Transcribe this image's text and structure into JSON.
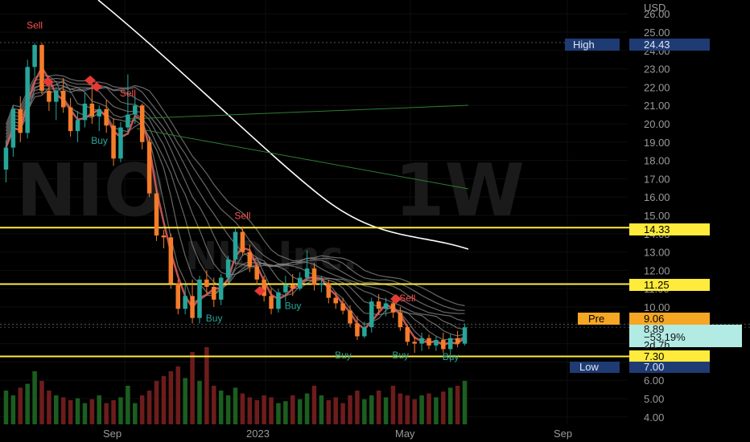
{
  "currency": "USD",
  "watermark": {
    "symbol": "NIO",
    "interval": "1W",
    "company": "NIO Inc."
  },
  "y_ticks": [
    "26.00",
    "25.00",
    "24.00",
    "23.00",
    "22.00",
    "21.00",
    "20.00",
    "19.00",
    "18.00",
    "17.00",
    "16.00",
    "15.00",
    "14.00",
    "13.00",
    "12.00",
    "11.00",
    "10.00",
    "9.00",
    "8.00",
    "7.00",
    "6.00",
    "5.00",
    "4.00"
  ],
  "x_ticks": [
    "Sep",
    "2023",
    "May",
    "Sep"
  ],
  "labels": {
    "high_name": "High",
    "high_value": "24.43",
    "level_1": "14.33",
    "level_2": "11.25",
    "pre_name": "Pre",
    "pre_value": "9.06",
    "last_price": "8.89",
    "change_pct": "−53.19%",
    "countdown": "2d 7h",
    "level_3": "7.30",
    "low_name": "Low",
    "low_value": "7.00"
  },
  "colors": {
    "up": "#26a69a",
    "down": "#f57c2a",
    "volume_up": "#1b5e20",
    "volume_down": "#6d1c1c",
    "level": "#ffeb3b",
    "axis_label_bg": "#1f3b73",
    "pre_bg": "#f5a623",
    "last_bg": "#b2ebe4",
    "sell_signal": "#ff5252",
    "buy_signal": "#26a69a"
  },
  "chart_data": {
    "type": "candlestick",
    "interval": "1W",
    "ylim": [
      3.5,
      26.4
    ],
    "levels": [
      14.33,
      11.25,
      7.3
    ],
    "candles": [
      {
        "o": 17.5,
        "h": 19.1,
        "l": 16.8,
        "c": 18.7
      },
      {
        "o": 18.7,
        "h": 21.0,
        "l": 18.2,
        "c": 20.8
      },
      {
        "o": 20.8,
        "h": 21.5,
        "l": 19.0,
        "c": 19.5
      },
      {
        "o": 19.5,
        "h": 23.5,
        "l": 19.2,
        "c": 23.1
      },
      {
        "o": 23.1,
        "h": 24.4,
        "l": 22.6,
        "c": 24.3
      },
      {
        "o": 24.3,
        "h": 24.4,
        "l": 21.6,
        "c": 21.8
      },
      {
        "o": 21.8,
        "h": 22.4,
        "l": 20.7,
        "c": 21.2
      },
      {
        "o": 21.2,
        "h": 22.0,
        "l": 20.2,
        "c": 21.8
      },
      {
        "o": 21.8,
        "h": 22.5,
        "l": 20.6,
        "c": 20.9
      },
      {
        "o": 20.9,
        "h": 21.4,
        "l": 19.3,
        "c": 19.6
      },
      {
        "o": 19.6,
        "h": 20.7,
        "l": 19.0,
        "c": 20.2
      },
      {
        "o": 20.2,
        "h": 21.7,
        "l": 19.8,
        "c": 21.1
      },
      {
        "o": 21.1,
        "h": 22.4,
        "l": 20.0,
        "c": 20.4
      },
      {
        "o": 20.4,
        "h": 21.0,
        "l": 19.6,
        "c": 20.8
      },
      {
        "o": 20.8,
        "h": 21.3,
        "l": 19.5,
        "c": 19.9
      },
      {
        "o": 19.9,
        "h": 20.3,
        "l": 17.7,
        "c": 18.1
      },
      {
        "o": 18.1,
        "h": 20.1,
        "l": 17.9,
        "c": 19.8
      },
      {
        "o": 19.8,
        "h": 22.7,
        "l": 19.5,
        "c": 20.5
      },
      {
        "o": 20.5,
        "h": 21.5,
        "l": 20.0,
        "c": 21.0
      },
      {
        "o": 21.0,
        "h": 21.1,
        "l": 18.6,
        "c": 19.0
      },
      {
        "o": 19.0,
        "h": 19.3,
        "l": 16.0,
        "c": 16.2
      },
      {
        "o": 16.2,
        "h": 16.4,
        "l": 13.6,
        "c": 13.9
      },
      {
        "o": 13.9,
        "h": 14.2,
        "l": 13.2,
        "c": 13.8
      },
      {
        "o": 13.8,
        "h": 14.0,
        "l": 11.0,
        "c": 11.3
      },
      {
        "o": 11.3,
        "h": 11.5,
        "l": 9.6,
        "c": 9.9
      },
      {
        "o": 9.9,
        "h": 11.2,
        "l": 9.6,
        "c": 10.6
      },
      {
        "o": 10.6,
        "h": 11.5,
        "l": 9.1,
        "c": 9.4
      },
      {
        "o": 9.4,
        "h": 11.7,
        "l": 9.1,
        "c": 11.5
      },
      {
        "o": 11.5,
        "h": 12.0,
        "l": 10.7,
        "c": 11.1
      },
      {
        "o": 11.1,
        "h": 11.6,
        "l": 10.0,
        "c": 10.4
      },
      {
        "o": 10.4,
        "h": 11.8,
        "l": 10.1,
        "c": 11.6
      },
      {
        "o": 11.6,
        "h": 12.8,
        "l": 11.3,
        "c": 12.6
      },
      {
        "o": 12.6,
        "h": 14.3,
        "l": 12.3,
        "c": 14.1
      },
      {
        "o": 14.1,
        "h": 14.4,
        "l": 12.8,
        "c": 13.0
      },
      {
        "o": 13.0,
        "h": 13.4,
        "l": 11.9,
        "c": 12.2
      },
      {
        "o": 12.2,
        "h": 12.4,
        "l": 11.2,
        "c": 11.5
      },
      {
        "o": 11.5,
        "h": 11.7,
        "l": 10.3,
        "c": 10.6
      },
      {
        "o": 10.6,
        "h": 11.0,
        "l": 9.6,
        "c": 9.9
      },
      {
        "o": 9.9,
        "h": 11.0,
        "l": 9.7,
        "c": 10.8
      },
      {
        "o": 10.8,
        "h": 11.7,
        "l": 10.3,
        "c": 11.2
      },
      {
        "o": 11.2,
        "h": 11.8,
        "l": 10.6,
        "c": 11.0
      },
      {
        "o": 11.0,
        "h": 11.9,
        "l": 10.9,
        "c": 11.6
      },
      {
        "o": 11.6,
        "h": 13.1,
        "l": 11.4,
        "c": 12.1
      },
      {
        "o": 12.1,
        "h": 12.4,
        "l": 10.9,
        "c": 11.2
      },
      {
        "o": 11.2,
        "h": 11.7,
        "l": 10.8,
        "c": 11.3
      },
      {
        "o": 11.3,
        "h": 11.5,
        "l": 10.2,
        "c": 10.5
      },
      {
        "o": 10.5,
        "h": 10.8,
        "l": 9.9,
        "c": 10.2
      },
      {
        "o": 10.2,
        "h": 10.5,
        "l": 9.6,
        "c": 9.8
      },
      {
        "o": 9.8,
        "h": 10.1,
        "l": 8.9,
        "c": 9.1
      },
      {
        "o": 9.1,
        "h": 9.5,
        "l": 8.2,
        "c": 8.4
      },
      {
        "o": 8.4,
        "h": 9.2,
        "l": 8.3,
        "c": 8.9
      },
      {
        "o": 8.9,
        "h": 10.5,
        "l": 8.6,
        "c": 10.3
      },
      {
        "o": 10.3,
        "h": 10.7,
        "l": 9.6,
        "c": 9.9
      },
      {
        "o": 9.9,
        "h": 10.5,
        "l": 9.5,
        "c": 10.2
      },
      {
        "o": 10.2,
        "h": 10.6,
        "l": 9.4,
        "c": 9.7
      },
      {
        "o": 9.7,
        "h": 10.0,
        "l": 8.7,
        "c": 8.9
      },
      {
        "o": 8.9,
        "h": 9.0,
        "l": 7.9,
        "c": 8.1
      },
      {
        "o": 8.1,
        "h": 8.4,
        "l": 7.5,
        "c": 8.0
      },
      {
        "o": 8.0,
        "h": 8.6,
        "l": 7.6,
        "c": 8.3
      },
      {
        "o": 8.3,
        "h": 8.5,
        "l": 7.7,
        "c": 7.9
      },
      {
        "o": 7.9,
        "h": 8.4,
        "l": 7.6,
        "c": 8.2
      },
      {
        "o": 8.2,
        "h": 8.6,
        "l": 7.5,
        "c": 7.7
      },
      {
        "o": 7.7,
        "h": 8.5,
        "l": 7.0,
        "c": 8.3
      },
      {
        "o": 8.3,
        "h": 8.7,
        "l": 7.8,
        "c": 8.0
      },
      {
        "o": 8.0,
        "h": 9.1,
        "l": 7.9,
        "c": 8.89
      }
    ],
    "volume": [
      0.35,
      0.3,
      0.38,
      0.42,
      0.55,
      0.45,
      0.35,
      0.3,
      0.28,
      0.25,
      0.27,
      0.22,
      0.26,
      0.3,
      0.22,
      0.25,
      0.28,
      0.4,
      0.22,
      0.3,
      0.35,
      0.45,
      0.5,
      0.55,
      0.6,
      0.48,
      0.75,
      0.45,
      0.8,
      0.4,
      0.35,
      0.3,
      0.38,
      0.32,
      0.28,
      0.25,
      0.3,
      0.28,
      0.22,
      0.24,
      0.3,
      0.26,
      0.32,
      0.4,
      0.3,
      0.25,
      0.28,
      0.22,
      0.3,
      0.35,
      0.26,
      0.3,
      0.35,
      0.28,
      0.4,
      0.32,
      0.3,
      0.26,
      0.3,
      0.32,
      0.28,
      0.34,
      0.38,
      0.4,
      0.45
    ],
    "signals": [
      {
        "text": "Sell",
        "type": "sell",
        "index": 4,
        "price": 25.2
      },
      {
        "text": "Buy",
        "type": "buy",
        "index": 13,
        "price": 18.9
      },
      {
        "text": "Sell",
        "type": "sell",
        "index": 17,
        "price": 21.5
      },
      {
        "text": "Sell",
        "type": "sell",
        "index": 33,
        "price": 14.8
      },
      {
        "text": "Buy",
        "type": "buy",
        "index": 29,
        "price": 9.2
      },
      {
        "text": "Buy",
        "type": "buy",
        "index": 40,
        "price": 9.9
      },
      {
        "text": "Buy",
        "type": "buy",
        "index": 47,
        "price": 7.2
      },
      {
        "text": "Sell",
        "type": "sell",
        "index": 56,
        "price": 10.3
      },
      {
        "text": "Buy",
        "type": "buy",
        "index": 55,
        "price": 7.2
      },
      {
        "text": "Buy",
        "type": "buy",
        "index": 62,
        "price": 7.1
      }
    ]
  }
}
